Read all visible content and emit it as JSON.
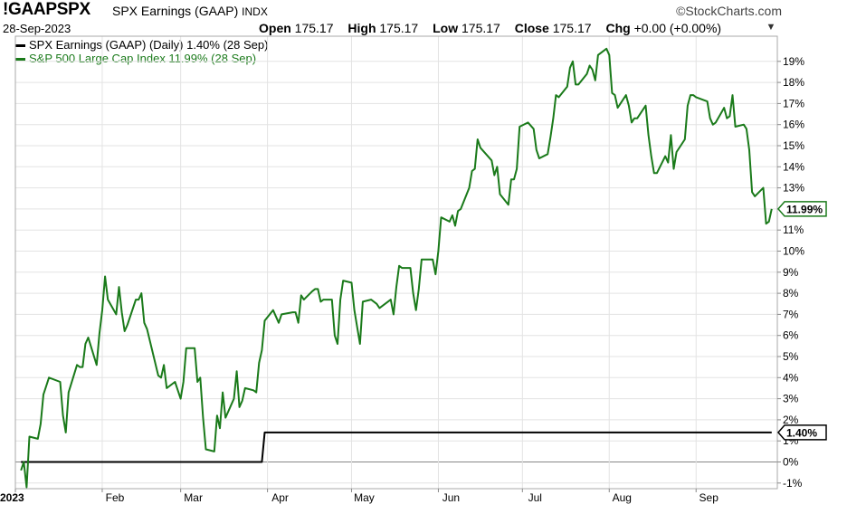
{
  "header": {
    "symbol": "!GAAPSPX",
    "symbol_name": "SPX Earnings (GAAP)",
    "exchange": "INDX",
    "brand": "StockCharts.com",
    "date": "28-Sep-2023",
    "open_label": "Open",
    "open_value": "175.17",
    "high_label": "High",
    "high_value": "175.17",
    "low_label": "Low",
    "low_value": "175.17",
    "close_label": "Close",
    "close_value": "175.17",
    "chg_label": "Chg",
    "chg_value": "+0.00 (+0.00%)",
    "scroll_icon": "triangle-down-icon"
  },
  "legend": [
    {
      "label": "SPX Earnings (GAAP) (Daily) 1.40% (28 Sep)",
      "color": "#000000"
    },
    {
      "label": "S&P 500 Large Cap Index 11.99% (28 Sep)",
      "color": "#1a7a1a"
    }
  ],
  "chart_data": {
    "type": "line",
    "x_tick_labels": [
      "2023",
      "Feb",
      "Mar",
      "Apr",
      "May",
      "Jun",
      "Jul",
      "Aug",
      "Sep"
    ],
    "y_tick_labels": [
      "-1%",
      "0%",
      "1%",
      "2%",
      "3%",
      "4%",
      "5%",
      "6%",
      "7%",
      "8%",
      "9%",
      "10%",
      "11%",
      "12%",
      "13%",
      "14%",
      "15%",
      "16%",
      "17%",
      "18%",
      "19%"
    ],
    "ylim": [
      -1.4,
      20.2
    ],
    "grid": true,
    "zero_line": true,
    "series": [
      {
        "name": "SPX Earnings (GAAP)",
        "color": "#000000",
        "end_label": "1.40%",
        "points": [
          [
            "2023-01-03",
            0
          ],
          [
            "2023-03-30",
            0
          ],
          [
            "2023-03-31",
            1.4
          ],
          [
            "2023-09-28",
            1.4
          ]
        ]
      },
      {
        "name": "S&P 500 Large Cap Index",
        "color": "#1a7a1a",
        "end_label": "11.99%",
        "points": [
          [
            "2023-01-03",
            -0.4
          ],
          [
            "2023-01-04",
            0.0
          ],
          [
            "2023-01-05",
            -1.2
          ],
          [
            "2023-01-06",
            1.2
          ],
          [
            "2023-01-09",
            1.1
          ],
          [
            "2023-01-10",
            1.8
          ],
          [
            "2023-01-11",
            3.2
          ],
          [
            "2023-01-12",
            3.6
          ],
          [
            "2023-01-13",
            4.0
          ],
          [
            "2023-01-17",
            3.8
          ],
          [
            "2023-01-18",
            2.2
          ],
          [
            "2023-01-19",
            1.4
          ],
          [
            "2023-01-20",
            3.3
          ],
          [
            "2023-01-23",
            4.6
          ],
          [
            "2023-01-24",
            4.5
          ],
          [
            "2023-01-25",
            4.5
          ],
          [
            "2023-01-26",
            5.6
          ],
          [
            "2023-01-27",
            5.9
          ],
          [
            "2023-01-30",
            4.6
          ],
          [
            "2023-01-31",
            6.1
          ],
          [
            "2023-02-01",
            7.2
          ],
          [
            "2023-02-02",
            8.8
          ],
          [
            "2023-02-03",
            7.7
          ],
          [
            "2023-02-06",
            7.0
          ],
          [
            "2023-02-07",
            8.3
          ],
          [
            "2023-02-08",
            7.1
          ],
          [
            "2023-02-09",
            6.2
          ],
          [
            "2023-02-10",
            6.5
          ],
          [
            "2023-02-13",
            7.7
          ],
          [
            "2023-02-14",
            7.7
          ],
          [
            "2023-02-15",
            8.0
          ],
          [
            "2023-02-16",
            6.6
          ],
          [
            "2023-02-17",
            6.3
          ],
          [
            "2023-02-21",
            4.1
          ],
          [
            "2023-02-22",
            4.0
          ],
          [
            "2023-02-23",
            4.6
          ],
          [
            "2023-02-24",
            3.5
          ],
          [
            "2023-02-27",
            3.8
          ],
          [
            "2023-02-28",
            3.4
          ],
          [
            "2023-03-01",
            3.0
          ],
          [
            "2023-03-02",
            3.8
          ],
          [
            "2023-03-03",
            5.4
          ],
          [
            "2023-03-06",
            5.4
          ],
          [
            "2023-03-07",
            3.8
          ],
          [
            "2023-03-08",
            4.0
          ],
          [
            "2023-03-09",
            2.1
          ],
          [
            "2023-03-10",
            0.6
          ],
          [
            "2023-03-13",
            0.5
          ],
          [
            "2023-03-14",
            2.2
          ],
          [
            "2023-03-15",
            1.6
          ],
          [
            "2023-03-16",
            3.3
          ],
          [
            "2023-03-17",
            2.1
          ],
          [
            "2023-03-20",
            3.0
          ],
          [
            "2023-03-21",
            4.3
          ],
          [
            "2023-03-22",
            2.6
          ],
          [
            "2023-03-23",
            2.9
          ],
          [
            "2023-03-24",
            3.5
          ],
          [
            "2023-03-27",
            3.4
          ],
          [
            "2023-03-28",
            3.3
          ],
          [
            "2023-03-29",
            4.7
          ],
          [
            "2023-03-30",
            5.3
          ],
          [
            "2023-03-31",
            6.7
          ],
          [
            "2023-04-03",
            7.2
          ],
          [
            "2023-04-04",
            6.9
          ],
          [
            "2023-04-05",
            6.6
          ],
          [
            "2023-04-06",
            7.0
          ],
          [
            "2023-04-10",
            7.1
          ],
          [
            "2023-04-11",
            7.1
          ],
          [
            "2023-04-12",
            6.6
          ],
          [
            "2023-04-13",
            7.9
          ],
          [
            "2023-04-14",
            7.7
          ],
          [
            "2023-04-17",
            8.1
          ],
          [
            "2023-04-18",
            8.2
          ],
          [
            "2023-04-19",
            8.2
          ],
          [
            "2023-04-20",
            7.6
          ],
          [
            "2023-04-21",
            7.7
          ],
          [
            "2023-04-24",
            7.7
          ],
          [
            "2023-04-25",
            6.0
          ],
          [
            "2023-04-26",
            5.6
          ],
          [
            "2023-04-27",
            7.7
          ],
          [
            "2023-04-28",
            8.6
          ],
          [
            "2023-05-01",
            8.5
          ],
          [
            "2023-05-02",
            7.2
          ],
          [
            "2023-05-03",
            6.4
          ],
          [
            "2023-05-04",
            5.6
          ],
          [
            "2023-05-05",
            7.6
          ],
          [
            "2023-05-08",
            7.7
          ],
          [
            "2023-05-09",
            7.6
          ],
          [
            "2023-05-10",
            7.5
          ],
          [
            "2023-05-11",
            7.3
          ],
          [
            "2023-05-12",
            7.4
          ],
          [
            "2023-05-15",
            7.7
          ],
          [
            "2023-05-16",
            7.0
          ],
          [
            "2023-05-17",
            8.3
          ],
          [
            "2023-05-18",
            9.3
          ],
          [
            "2023-05-19",
            9.2
          ],
          [
            "2023-05-22",
            9.2
          ],
          [
            "2023-05-23",
            8.0
          ],
          [
            "2023-05-24",
            7.2
          ],
          [
            "2023-05-25",
            8.2
          ],
          [
            "2023-05-26",
            9.6
          ],
          [
            "2023-05-30",
            9.6
          ],
          [
            "2023-05-31",
            8.9
          ],
          [
            "2023-06-01",
            10.0
          ],
          [
            "2023-06-02",
            11.6
          ],
          [
            "2023-06-05",
            11.4
          ],
          [
            "2023-06-06",
            11.7
          ],
          [
            "2023-06-07",
            11.2
          ],
          [
            "2023-06-08",
            11.9
          ],
          [
            "2023-06-09",
            12.0
          ],
          [
            "2023-06-12",
            13.0
          ],
          [
            "2023-06-13",
            13.8
          ],
          [
            "2023-06-14",
            13.9
          ],
          [
            "2023-06-15",
            15.3
          ],
          [
            "2023-06-16",
            14.9
          ],
          [
            "2023-06-20",
            14.3
          ],
          [
            "2023-06-21",
            13.6
          ],
          [
            "2023-06-22",
            14.0
          ],
          [
            "2023-06-23",
            12.7
          ],
          [
            "2023-06-26",
            12.2
          ],
          [
            "2023-06-27",
            13.4
          ],
          [
            "2023-06-28",
            13.4
          ],
          [
            "2023-06-29",
            13.9
          ],
          [
            "2023-06-30",
            15.9
          ],
          [
            "2023-07-03",
            16.1
          ],
          [
            "2023-07-05",
            15.8
          ],
          [
            "2023-07-06",
            14.8
          ],
          [
            "2023-07-07",
            14.4
          ],
          [
            "2023-07-10",
            14.6
          ],
          [
            "2023-07-11",
            15.4
          ],
          [
            "2023-07-12",
            16.3
          ],
          [
            "2023-07-13",
            17.4
          ],
          [
            "2023-07-14",
            17.3
          ],
          [
            "2023-07-17",
            17.8
          ],
          [
            "2023-07-18",
            18.7
          ],
          [
            "2023-07-19",
            19.0
          ],
          [
            "2023-07-20",
            17.9
          ],
          [
            "2023-07-21",
            17.9
          ],
          [
            "2023-07-24",
            18.4
          ],
          [
            "2023-07-25",
            18.8
          ],
          [
            "2023-07-26",
            18.6
          ],
          [
            "2023-07-27",
            18.1
          ],
          [
            "2023-07-28",
            19.3
          ],
          [
            "2023-07-31",
            19.6
          ],
          [
            "2023-08-01",
            19.3
          ],
          [
            "2023-08-02",
            17.5
          ],
          [
            "2023-08-03",
            17.4
          ],
          [
            "2023-08-04",
            16.8
          ],
          [
            "2023-08-07",
            17.4
          ],
          [
            "2023-08-08",
            16.9
          ],
          [
            "2023-08-09",
            16.1
          ],
          [
            "2023-08-10",
            16.3
          ],
          [
            "2023-08-11",
            16.3
          ],
          [
            "2023-08-14",
            16.9
          ],
          [
            "2023-08-15",
            15.5
          ],
          [
            "2023-08-16",
            14.5
          ],
          [
            "2023-08-17",
            13.7
          ],
          [
            "2023-08-18",
            13.7
          ],
          [
            "2023-08-21",
            14.5
          ],
          [
            "2023-08-22",
            14.2
          ],
          [
            "2023-08-23",
            15.5
          ],
          [
            "2023-08-24",
            13.9
          ],
          [
            "2023-08-25",
            14.7
          ],
          [
            "2023-08-28",
            15.3
          ],
          [
            "2023-08-29",
            16.9
          ],
          [
            "2023-08-30",
            17.4
          ],
          [
            "2023-08-31",
            17.4
          ],
          [
            "2023-09-01",
            17.3
          ],
          [
            "2023-09-05",
            17.1
          ],
          [
            "2023-09-06",
            16.3
          ],
          [
            "2023-09-07",
            16.0
          ],
          [
            "2023-09-08",
            16.1
          ],
          [
            "2023-09-11",
            16.8
          ],
          [
            "2023-09-12",
            16.3
          ],
          [
            "2023-09-13",
            16.4
          ],
          [
            "2023-09-14",
            17.4
          ],
          [
            "2023-09-15",
            15.9
          ],
          [
            "2023-09-18",
            16.0
          ],
          [
            "2023-09-19",
            15.8
          ],
          [
            "2023-09-20",
            14.8
          ],
          [
            "2023-09-21",
            12.8
          ],
          [
            "2023-09-22",
            12.6
          ],
          [
            "2023-09-25",
            13.0
          ],
          [
            "2023-09-26",
            11.3
          ],
          [
            "2023-09-27",
            11.4
          ],
          [
            "2023-09-28",
            12.0
          ]
        ]
      }
    ]
  }
}
